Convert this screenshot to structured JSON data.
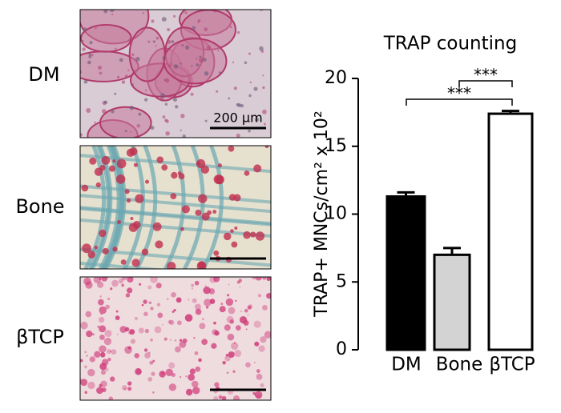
{
  "panels": {
    "labels": [
      "DM",
      "Bone",
      "βTCP"
    ],
    "scale_bar": "200 μm"
  },
  "chart_data": {
    "type": "bar",
    "title": "TRAP counting",
    "y_label": "TRAP+ MNCs/cm² x 10²",
    "categories": [
      "DM",
      "Bone",
      "βTCP"
    ],
    "values": [
      11.3,
      7.0,
      17.4
    ],
    "errors": [
      0.3,
      0.5,
      0.2
    ],
    "colors": [
      "#000000",
      "#d3d3d3",
      "#ffffff"
    ],
    "ylim": [
      0,
      20
    ],
    "yticks": [
      0,
      5,
      10,
      15,
      20
    ],
    "annotations": [
      "***",
      "***"
    ]
  }
}
